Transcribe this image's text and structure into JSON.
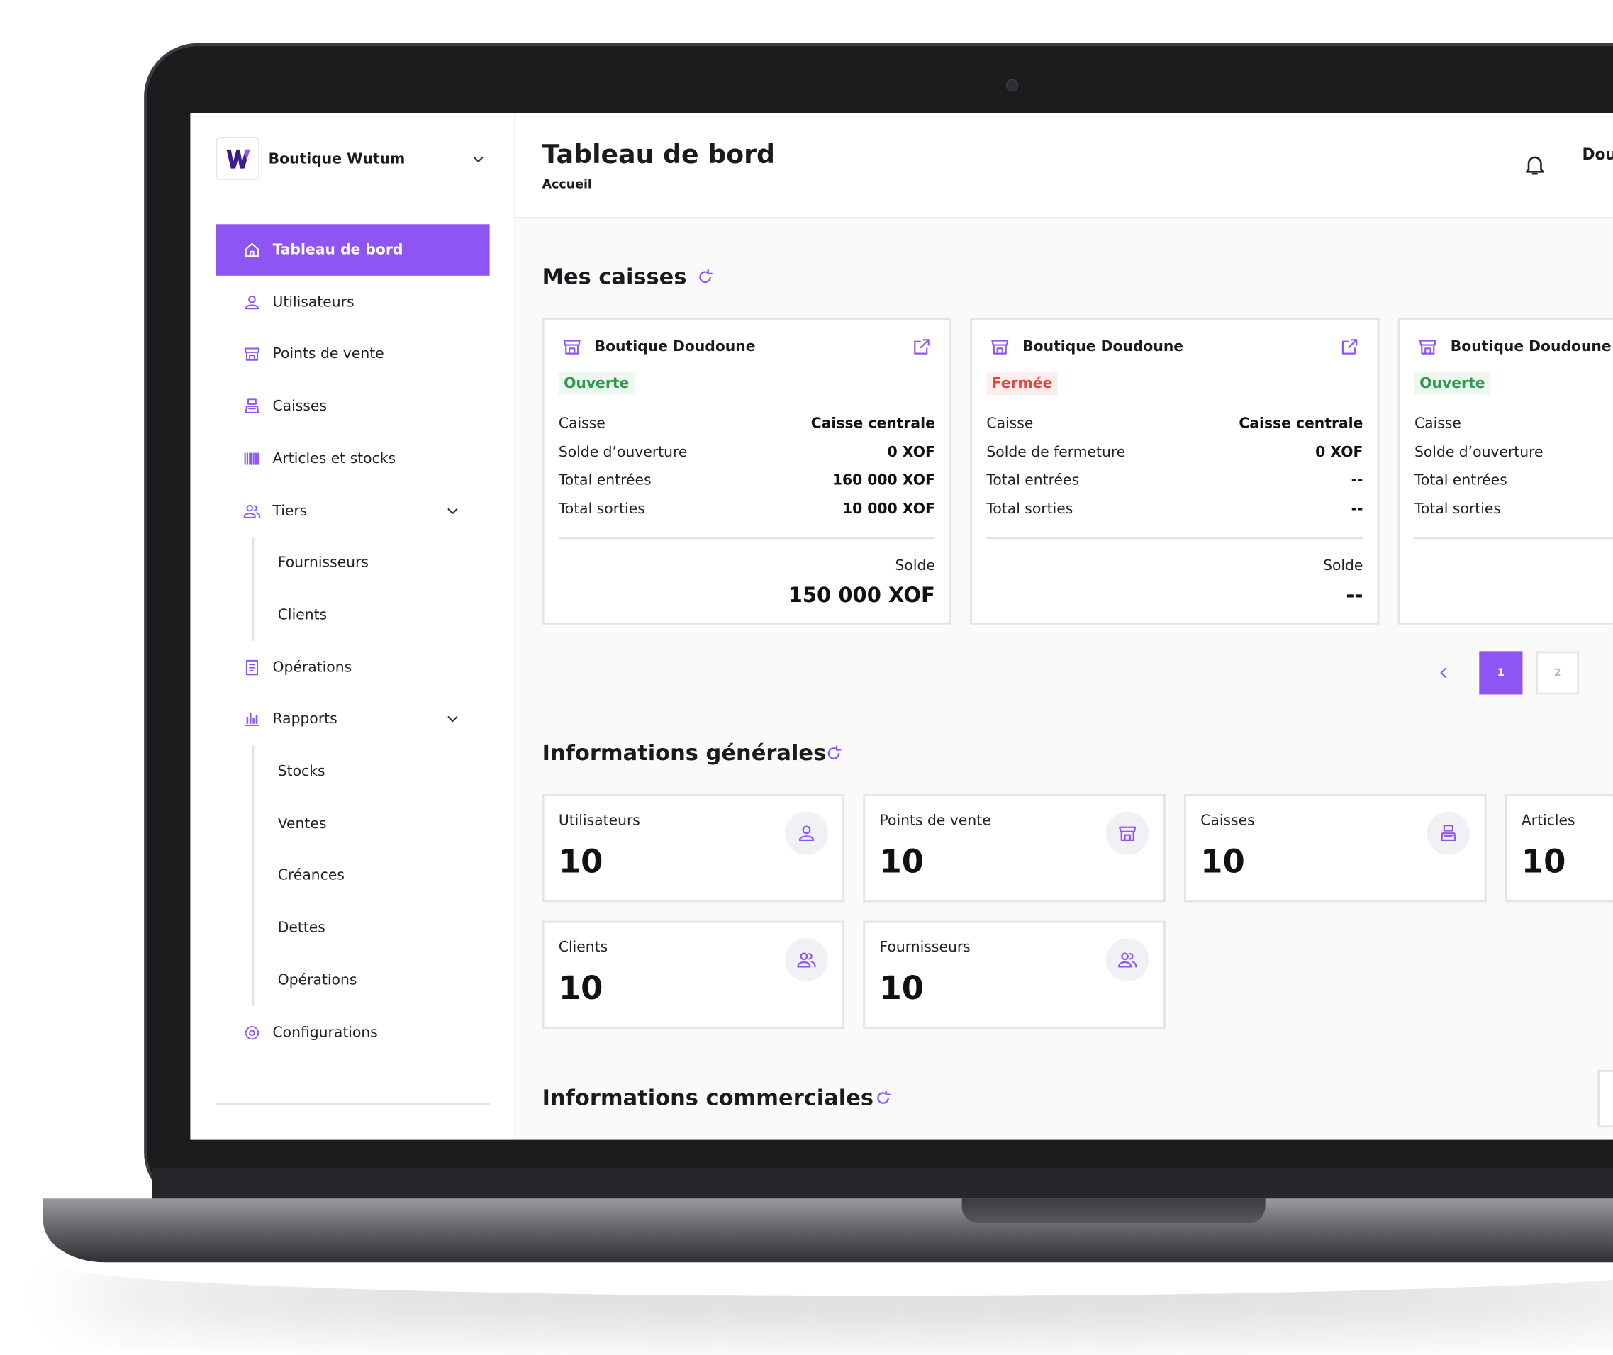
{
  "sidebar": {
    "brand": "Boutique Wutum",
    "menu": [
      {
        "label": "Tableau de bord",
        "active": true
      },
      {
        "label": "Utilisateurs"
      },
      {
        "label": "Points de vente"
      },
      {
        "label": "Caisses"
      },
      {
        "label": "Articles et stocks"
      },
      {
        "label": "Tiers",
        "children": [
          "Fournisseurs",
          "Clients"
        ]
      },
      {
        "label": "Opérations"
      },
      {
        "label": "Rapports",
        "children": [
          "Stocks",
          "Ventes",
          "Créances",
          "Dettes",
          "Opérations"
        ]
      },
      {
        "label": "Configurations"
      }
    ]
  },
  "header": {
    "title": "Tableau de bord",
    "breadcrumb": "Accueil",
    "user": "Dou"
  },
  "caisses": {
    "title": "Mes caisses",
    "cards": [
      {
        "name": "Boutique Doudoune",
        "status": "Ouverte",
        "open": true,
        "rows": [
          {
            "label": "Caisse",
            "value": "Caisse centrale"
          },
          {
            "label": "Solde d’ouverture",
            "value": "0 XOF"
          },
          {
            "label": "Total entrées",
            "value": "160 000 XOF"
          },
          {
            "label": "Total sorties",
            "value": "10 000 XOF"
          }
        ],
        "total_label": "Solde",
        "total": "150 000 XOF"
      },
      {
        "name": "Boutique Doudoune",
        "status": "Fermée",
        "open": false,
        "rows": [
          {
            "label": "Caisse",
            "value": "Caisse centrale"
          },
          {
            "label": "Solde de fermeture",
            "value": "0 XOF"
          },
          {
            "label": "Total entrées",
            "value": "--"
          },
          {
            "label": "Total sorties",
            "value": "--"
          }
        ],
        "total_label": "Solde",
        "total": "--"
      },
      {
        "name": "Boutique Doudoune",
        "status": "Ouverte",
        "open": true,
        "rows": [
          {
            "label": "Caisse"
          },
          {
            "label": "Solde d’ouverture"
          },
          {
            "label": "Total entrées"
          },
          {
            "label": "Total sorties"
          }
        ]
      }
    ],
    "pages": [
      "1",
      "2"
    ]
  },
  "general": {
    "title": "Informations générales",
    "stats": [
      {
        "label": "Utilisateurs",
        "value": 10,
        "icon": "user"
      },
      {
        "label": "Points de vente",
        "value": 10,
        "icon": "store"
      },
      {
        "label": "Caisses",
        "value": 10,
        "icon": "register"
      },
      {
        "label": "Articles",
        "value": 10,
        "icon": "none"
      },
      {
        "label": "Clients",
        "value": 10,
        "icon": "users"
      },
      {
        "label": "Fournisseurs",
        "value": 10,
        "icon": "users"
      }
    ]
  },
  "commercial": {
    "title": "Informations commerciales"
  }
}
